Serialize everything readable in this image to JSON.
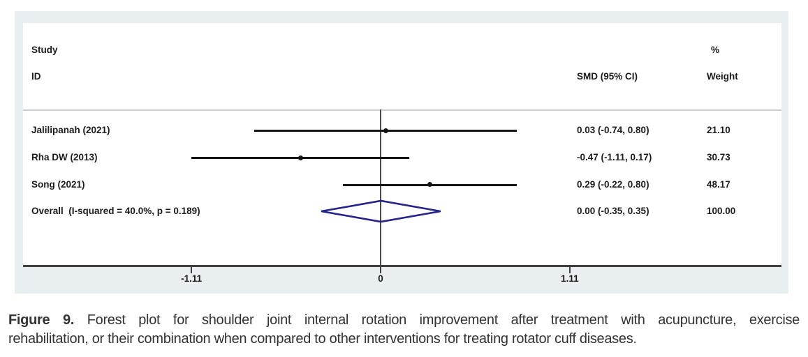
{
  "chart_data": {
    "type": "forest",
    "columns": {
      "study_header_line1": "Study",
      "study_header_line2": "ID",
      "smd_header": "SMD (95% CI)",
      "weight_header_line1": "%",
      "weight_header_line2": "Weight"
    },
    "x_axis": {
      "ticks": [
        {
          "value": -1.11,
          "label": "-1.11"
        },
        {
          "value": 0,
          "label": "0"
        },
        {
          "value": 1.11,
          "label": "1.11"
        }
      ]
    },
    "studies": [
      {
        "id": "Jalilipanah (2021)",
        "smd": 0.03,
        "ci_low": -0.74,
        "ci_high": 0.8,
        "smd_ci_text": "0.03 (-0.74, 0.80)",
        "weight": "21.10"
      },
      {
        "id": "Rha DW (2013)",
        "smd": -0.47,
        "ci_low": -1.11,
        "ci_high": 0.17,
        "smd_ci_text": "-0.47 (-1.11, 0.17)",
        "weight": "30.73"
      },
      {
        "id": "Song (2021)",
        "smd": 0.29,
        "ci_low": -0.22,
        "ci_high": 0.8,
        "smd_ci_text": "0.29 (-0.22, 0.80)",
        "weight": "48.17"
      }
    ],
    "overall": {
      "id": "Overall  (I-squared = 40.0%, p = 0.189)",
      "smd": 0.0,
      "ci_low": -0.35,
      "ci_high": 0.35,
      "smd_ci_text": "0.00 (-0.35, 0.35)",
      "weight": "100.00"
    }
  },
  "colors": {
    "panel_bg": "#e9eef1",
    "plot_bg": "#ffffff",
    "axis": "#3f3f3f",
    "ci_line": "#141414",
    "marker": "#141414",
    "diamond": "#23238b",
    "divider": "#c9cdd0",
    "text": "#1c1c1c",
    "caption_text": "#333333"
  },
  "caption": {
    "prefix": "Figure 9.",
    "line1_rest": " Forest plot for shoulder joint internal rotation improvement after treatment with acupuncture, exercise",
    "line2": "rehabilitation, or their combination when compared to other interventions for treating rotator cuff diseases."
  }
}
